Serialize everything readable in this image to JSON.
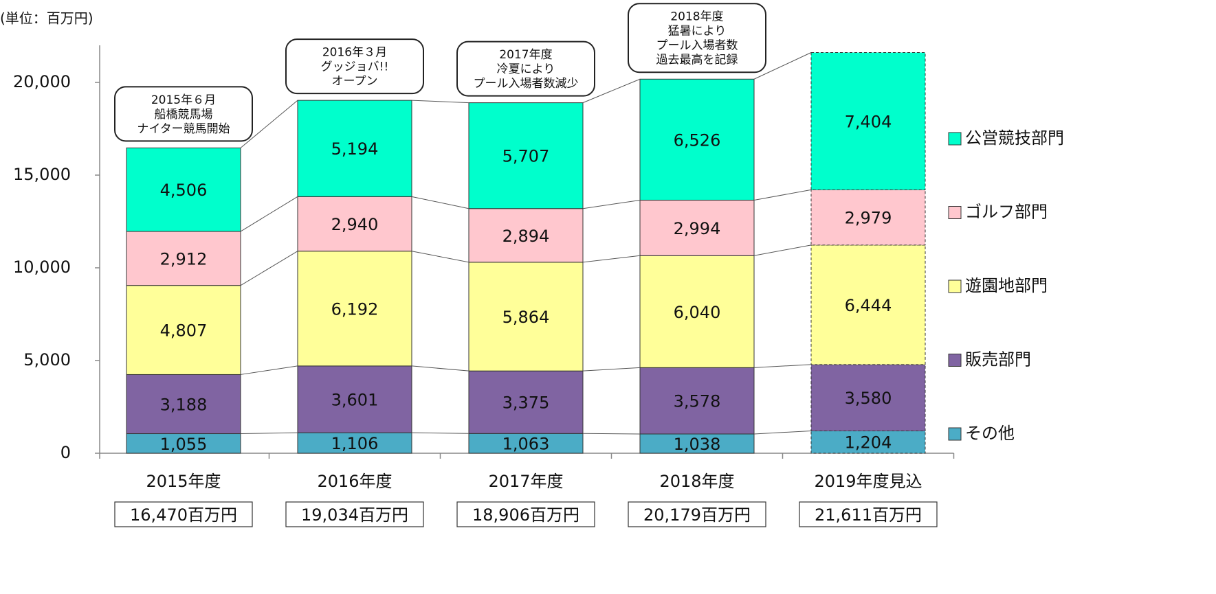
{
  "chart_data": {
    "type": "stacked_bar",
    "unit_label": "(単位：百万円)",
    "categories": [
      "2015年度",
      "2016年度",
      "2017年度",
      "2018年度",
      "2019年度見込"
    ],
    "totals": [
      "16,470百万円",
      "19,034百万円",
      "18,906百万円",
      "20,179百万円",
      "21,611百万円"
    ],
    "series": [
      {
        "name": "その他",
        "color": "#4bacc6",
        "values": [
          1055,
          1106,
          1063,
          1038,
          1204
        ],
        "value_labels": [
          "1,055",
          "1,106",
          "1,063",
          "1,038",
          "1,204"
        ]
      },
      {
        "name": "販売部門",
        "color": "#8064a2",
        "values": [
          3188,
          3601,
          3375,
          3578,
          3580
        ],
        "value_labels": [
          "3,188",
          "3,601",
          "3,375",
          "3,578",
          "3,580"
        ]
      },
      {
        "name": "遊園地部門",
        "color": "#ffff99",
        "values": [
          4807,
          6192,
          5864,
          6040,
          6444
        ],
        "value_labels": [
          "4,807",
          "6,192",
          "5,864",
          "6,040",
          "6,444"
        ]
      },
      {
        "name": "ゴルフ部門",
        "color": "#ffc7ce",
        "values": [
          2912,
          2940,
          2894,
          2994,
          2979
        ],
        "value_labels": [
          "2,912",
          "2,940",
          "2,894",
          "2,994",
          "2,979"
        ]
      },
      {
        "name": "公営競技部門",
        "color": "#00ffcc",
        "values": [
          4506,
          5194,
          5707,
          6526,
          7404
        ],
        "value_labels": [
          "4,506",
          "5,194",
          "5,707",
          "6,526",
          "7,404"
        ]
      }
    ],
    "annotations": [
      {
        "category": 0,
        "lines": [
          "2015年６月",
          "船橋競馬場",
          "ナイター競馬開始"
        ]
      },
      {
        "category": 1,
        "lines": [
          "2016年３月",
          "グッジョバ!!",
          "オープン"
        ]
      },
      {
        "category": 2,
        "lines": [
          "2017年度",
          "冷夏により",
          "プール入場者数減少"
        ]
      },
      {
        "category": 3,
        "lines": [
          "2018年度",
          "猛暑により",
          "プール入場者数",
          "過去最高を記録"
        ]
      }
    ],
    "dashed_border_categories": [
      4
    ],
    "ylim": [
      0,
      22000
    ],
    "yticks": [
      0,
      {
        "value": 5000,
        "label": "5,000"
      },
      {
        "value": 10000,
        "label": "10,000"
      },
      {
        "value": 15000,
        "label": "15,000"
      },
      {
        "value": 20000,
        "label": "20,000"
      }
    ],
    "grid": false,
    "legend": "right"
  }
}
